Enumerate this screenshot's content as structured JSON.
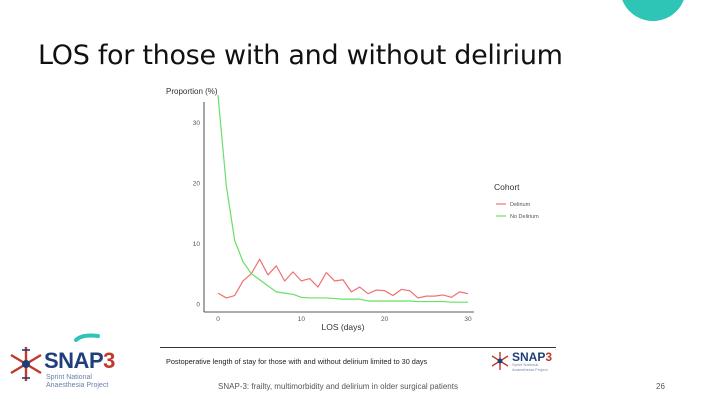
{
  "slide": {
    "title": "LOS for those with and without delirium",
    "caption": "Postoperative length of stay for those with and without delirium limited to 30 days",
    "footer": "SNAP-3: frailty, multimorbidity and delirium in older surgical patients",
    "page_number": "26",
    "accent_color": "#2ec4b6"
  },
  "logo": {
    "brand": "SNAP",
    "brand_number": "3",
    "line1": "Sprint National",
    "line2": "Anaesthesia Project",
    "brand_color": "#1f3f7a",
    "number_color": "#c0392b"
  },
  "chart_data": {
    "type": "line",
    "ylabel": "Proportion (%)",
    "xlabel": "LOS (days)",
    "legend_title": "Cohort",
    "legend_position": "right",
    "grid": false,
    "xlim": [
      0,
      30
    ],
    "ylim": [
      0,
      35
    ],
    "x_ticks": [
      0,
      10,
      20,
      30
    ],
    "y_ticks": [
      0,
      10,
      20,
      30
    ],
    "x": [
      0,
      1,
      2,
      3,
      4,
      5,
      6,
      7,
      8,
      9,
      10,
      11,
      12,
      13,
      14,
      15,
      16,
      17,
      18,
      19,
      20,
      21,
      22,
      23,
      24,
      25,
      26,
      27,
      28,
      29,
      30
    ],
    "series": [
      {
        "name": "Delirium",
        "color": "#f07070",
        "values": [
          1.8,
          1.0,
          1.4,
          3.8,
          5.0,
          7.4,
          4.8,
          6.3,
          3.8,
          5.3,
          3.8,
          4.2,
          2.8,
          5.2,
          3.8,
          4.0,
          2.0,
          2.8,
          1.7,
          2.3,
          2.2,
          1.4,
          2.4,
          2.2,
          1.0,
          1.3,
          1.3,
          1.5,
          1.1,
          2.0,
          1.7
        ]
      },
      {
        "name": "No Delirium",
        "color": "#66e066",
        "values": [
          34.5,
          19.5,
          10.5,
          7.0,
          5.0,
          4.0,
          3.0,
          2.0,
          1.8,
          1.6,
          1.1,
          1.0,
          1.0,
          1.0,
          0.9,
          0.8,
          0.8,
          0.8,
          0.5,
          0.5,
          0.5,
          0.5,
          0.5,
          0.5,
          0.4,
          0.4,
          0.4,
          0.4,
          0.3,
          0.3,
          0.3
        ]
      }
    ]
  }
}
